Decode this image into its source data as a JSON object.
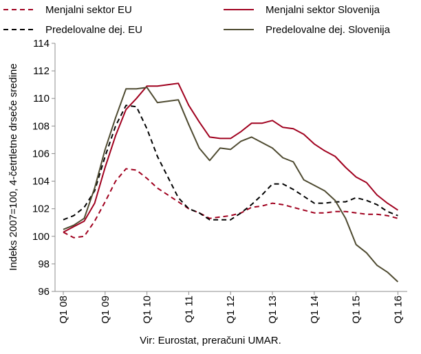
{
  "chart_data": {
    "type": "line",
    "title": "",
    "ylabel": "Indeks 2007=100, 4-četrtletne drseče sredine",
    "xlabel": "",
    "ylim": [
      96,
      114
    ],
    "yticks": [
      96,
      98,
      100,
      102,
      104,
      106,
      108,
      110,
      112,
      114
    ],
    "xtick_labels": [
      "Q1 08",
      "Q1 09",
      "Q1 10",
      "Q1 11",
      "Q1 12",
      "Q1 13",
      "Q1 14",
      "Q1 15",
      "Q1 16"
    ],
    "x": [
      "Q1 08",
      "Q2 08",
      "Q3 08",
      "Q4 08",
      "Q1 09",
      "Q2 09",
      "Q3 09",
      "Q4 09",
      "Q1 10",
      "Q2 10",
      "Q3 10",
      "Q4 10",
      "Q1 11",
      "Q2 11",
      "Q3 11",
      "Q4 11",
      "Q1 12",
      "Q2 12",
      "Q3 12",
      "Q4 12",
      "Q1 13",
      "Q2 13",
      "Q3 13",
      "Q4 13",
      "Q1 14",
      "Q2 14",
      "Q3 14",
      "Q4 14",
      "Q1 15",
      "Q2 15",
      "Q3 15",
      "Q4 15",
      "Q1 16"
    ],
    "grid": false,
    "legend_position": "top",
    "series": [
      {
        "name": "Menjalni sektor EU",
        "color": "#a0001e",
        "dash": "dashed",
        "values": [
          100.3,
          99.9,
          100.0,
          101.1,
          102.5,
          104.0,
          104.9,
          104.8,
          104.2,
          103.5,
          103.0,
          102.5,
          102.0,
          101.7,
          101.3,
          101.4,
          101.5,
          101.7,
          102.1,
          102.2,
          102.4,
          102.3,
          102.1,
          101.9,
          101.7,
          101.7,
          101.8,
          101.8,
          101.7,
          101.6,
          101.6,
          101.5,
          101.3
        ]
      },
      {
        "name": "Menjalni sektor Slovenija",
        "color": "#a0001e",
        "dash": "solid",
        "values": [
          100.3,
          100.7,
          101.1,
          102.4,
          105.0,
          107.3,
          109.2,
          110.0,
          110.9,
          110.9,
          111.0,
          111.1,
          109.5,
          108.3,
          107.2,
          107.1,
          107.1,
          107.6,
          108.2,
          108.2,
          108.4,
          107.9,
          107.8,
          107.4,
          106.7,
          106.2,
          105.8,
          105.0,
          104.3,
          103.9,
          103.0,
          102.4,
          101.9
        ]
      },
      {
        "name": "Predelovalne dej. EU",
        "color": "#000000",
        "dash": "dashed",
        "values": [
          101.2,
          101.5,
          102.1,
          103.3,
          105.8,
          108.0,
          109.5,
          109.4,
          107.8,
          105.8,
          104.3,
          102.8,
          102.0,
          101.7,
          101.2,
          101.2,
          101.2,
          101.7,
          102.3,
          103.0,
          103.8,
          103.8,
          103.4,
          102.9,
          102.4,
          102.4,
          102.5,
          102.5,
          102.8,
          102.6,
          102.3,
          101.8,
          101.5
        ]
      },
      {
        "name": "Predelovalne dej. Slovenija",
        "color": "#4e4a30",
        "dash": "solid",
        "values": [
          100.5,
          100.8,
          101.3,
          103.5,
          106.3,
          108.6,
          110.7,
          110.7,
          110.8,
          109.7,
          109.8,
          109.9,
          108.1,
          106.4,
          105.5,
          106.4,
          106.3,
          106.9,
          107.2,
          106.8,
          106.4,
          105.7,
          105.4,
          104.1,
          103.7,
          103.3,
          102.6,
          101.3,
          99.4,
          98.8,
          97.9,
          97.4,
          96.7
        ]
      }
    ]
  },
  "source": "Vir: Eurostat, preračuni UMAR."
}
